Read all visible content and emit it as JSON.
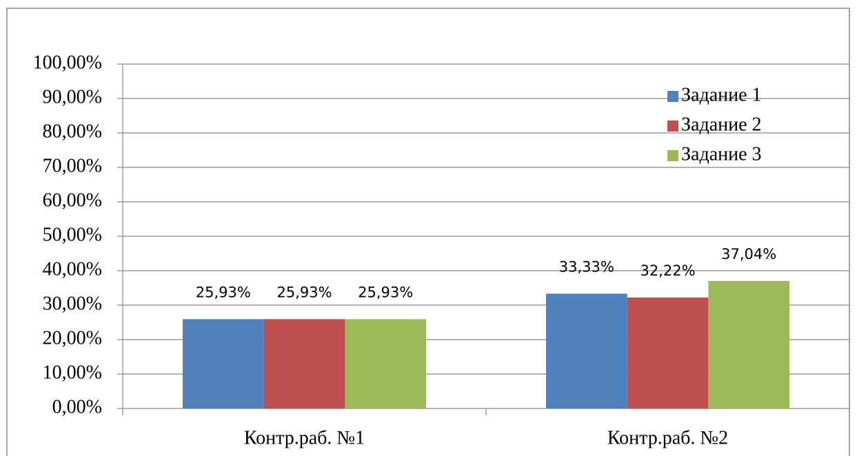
{
  "chart_data": {
    "type": "bar",
    "categories": [
      "Контр.раб. №1",
      "Контр.раб. №2"
    ],
    "series": [
      {
        "name": "Задание 1",
        "color": "#4f81bd",
        "values": [
          25.93,
          33.33
        ],
        "value_labels": [
          "25,93%",
          "33,33%"
        ]
      },
      {
        "name": "Задание 2",
        "color": "#c0504d",
        "values": [
          25.93,
          32.22
        ],
        "value_labels": [
          "25,93%",
          "32,22%"
        ]
      },
      {
        "name": "Задание 3",
        "color": "#9bbb59",
        "values": [
          25.93,
          37.04
        ],
        "value_labels": [
          "25,93%",
          "37,04%"
        ]
      }
    ],
    "ylim": [
      0,
      100
    ],
    "yticks": [
      {
        "value": 0,
        "label": "0,00%"
      },
      {
        "value": 10,
        "label": "10,00%"
      },
      {
        "value": 20,
        "label": "20,00%"
      },
      {
        "value": 30,
        "label": "30,00%"
      },
      {
        "value": 40,
        "label": "40,00%"
      },
      {
        "value": 50,
        "label": "50,00%"
      },
      {
        "value": 60,
        "label": "60,00%"
      },
      {
        "value": 70,
        "label": "70,00%"
      },
      {
        "value": 80,
        "label": "80,00%"
      },
      {
        "value": 90,
        "label": "90,00%"
      },
      {
        "value": 100,
        "label": "100,00%"
      }
    ],
    "grid": true,
    "legend": "top-right"
  }
}
